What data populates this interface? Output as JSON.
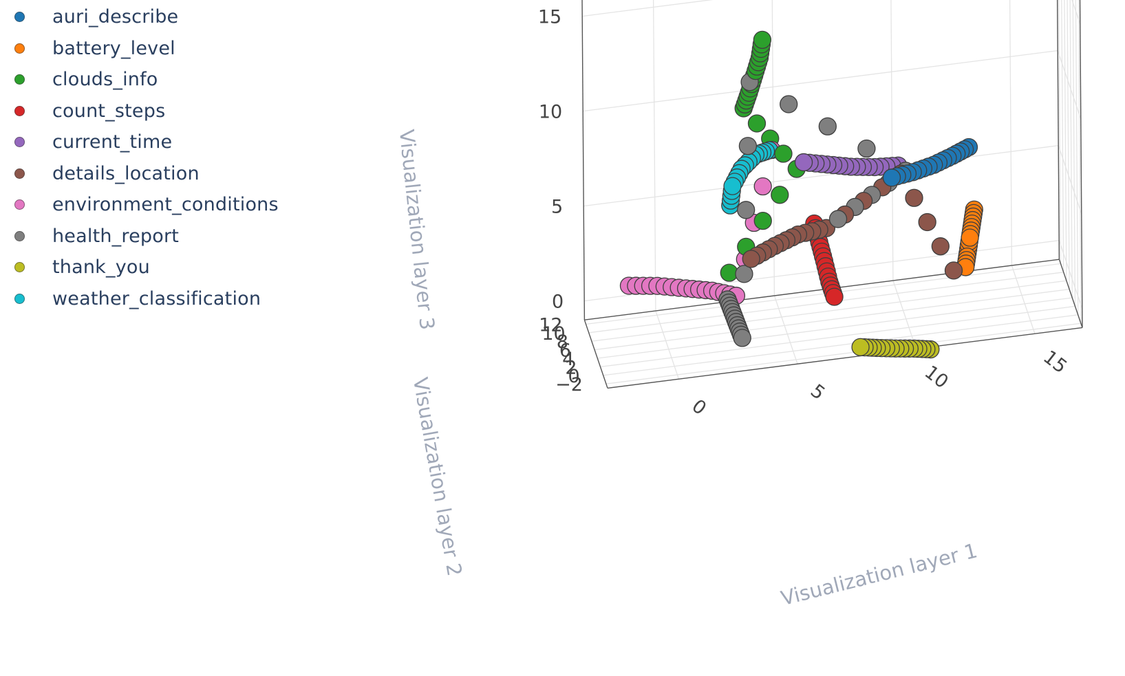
{
  "chart_data": {
    "type": "scatter3d",
    "title": "",
    "xlabel": "Visualization layer 1",
    "ylabel": "Visualization layer 2",
    "zlabel": "Visualization layer 3",
    "x_ticks": [
      "0",
      "5",
      "10",
      "15"
    ],
    "y_ticks": [
      "−2",
      "0",
      "2",
      "4",
      "6",
      "8",
      "10",
      "12"
    ],
    "z_ticks": [
      "0",
      "5",
      "10",
      "15"
    ],
    "xlim": [
      -3,
      17
    ],
    "ylim": [
      -3,
      13
    ],
    "zlim": [
      -1,
      17
    ],
    "legend_position": "top-left",
    "series": [
      {
        "name": "auri_describe",
        "color": "#1f77b4",
        "points": [
          [
            9.5,
            5,
            6.3
          ],
          [
            10.4,
            5.2,
            6.4
          ],
          [
            11.3,
            5.4,
            6.6
          ],
          [
            12.1,
            5.6,
            6.9
          ],
          [
            12.8,
            5.8,
            7.2
          ]
        ]
      },
      {
        "name": "battery_level",
        "color": "#ff7f0e",
        "points": [
          [
            12.5,
            3.7,
            1.4
          ],
          [
            12.6,
            3.8,
            2.1
          ],
          [
            12.7,
            3.8,
            2.9
          ],
          [
            12.8,
            3.9,
            3.6
          ],
          [
            12.9,
            4.0,
            4.3
          ]
        ]
      },
      {
        "name": "clouds_info",
        "color": "#2ca02c",
        "points": [
          [
            4.1,
            5.1,
            14.4
          ],
          [
            4.0,
            5.4,
            13.4
          ],
          [
            3.8,
            5.9,
            12.4
          ],
          [
            3.6,
            6.4,
            11.4
          ],
          [
            3.4,
            6.9,
            10.5
          ],
          [
            5.5,
            5,
            7.4
          ],
          [
            2.6,
            4.5,
            2.5
          ]
        ]
      },
      {
        "name": "count_steps",
        "color": "#d62728",
        "points": [
          [
            6.2,
            4.6,
            4.5
          ],
          [
            6.4,
            4.5,
            3.5
          ],
          [
            6.6,
            4.4,
            2.5
          ],
          [
            6.8,
            4.3,
            1.4
          ],
          [
            7.0,
            4.2,
            0.6
          ]
        ]
      },
      {
        "name": "current_time",
        "color": "#9467bd",
        "points": [
          [
            5.8,
            5,
            7.7
          ],
          [
            6.8,
            5.1,
            7.4
          ],
          [
            7.8,
            5.2,
            7.1
          ],
          [
            8.8,
            5.3,
            6.9
          ],
          [
            9.8,
            5.4,
            6.8
          ]
        ]
      },
      {
        "name": "details_location",
        "color": "#8c564b",
        "points": [
          [
            3.5,
            4,
            3.2
          ],
          [
            4.5,
            4.1,
            3.7
          ],
          [
            5.5,
            4.3,
            4.1
          ],
          [
            6.7,
            4.5,
            4.2
          ],
          [
            9.9,
            5.2,
            6.4
          ],
          [
            12.0,
            3.7,
            1.3
          ]
        ]
      },
      {
        "name": "environment_conditions",
        "color": "#e377c2",
        "points": [
          [
            -1.5,
            6.6,
            2.0
          ],
          [
            -0.3,
            6.6,
            1.8
          ],
          [
            0.9,
            6.5,
            1.5
          ],
          [
            2.0,
            6.5,
            1.2
          ],
          [
            3.0,
            6.4,
            0.8
          ],
          [
            4.5,
            5.7,
            8.4
          ]
        ]
      },
      {
        "name": "health_report",
        "color": "#7f7f7f",
        "points": [
          [
            2.5,
            4.1,
            1.2
          ],
          [
            2.7,
            4.1,
            0.5
          ],
          [
            2.9,
            4.0,
            -0.2
          ],
          [
            3.1,
            4.0,
            -0.9
          ],
          [
            3.6,
            5.8,
            12.1
          ],
          [
            10.1,
            5.3,
            6.5
          ],
          [
            7.2,
            4.5,
            4.6
          ]
        ]
      },
      {
        "name": "thank_you",
        "color": "#bcbd22",
        "points": [
          [
            7.8,
            -0.6,
            -1.1
          ],
          [
            8.5,
            -0.4,
            -1.3
          ],
          [
            9.3,
            -0.2,
            -1.5
          ],
          [
            10.1,
            0.1,
            -1.7
          ],
          [
            10.8,
            0.3,
            -1.9
          ]
        ]
      },
      {
        "name": "weather_classification",
        "color": "#17becf",
        "points": [
          [
            2.7,
            5.1,
            5.9
          ],
          [
            2.8,
            5.1,
            6.9
          ],
          [
            3.2,
            5.3,
            7.7
          ],
          [
            3.8,
            5.5,
            8.3
          ],
          [
            4.4,
            5.7,
            8.4
          ]
        ]
      }
    ]
  }
}
